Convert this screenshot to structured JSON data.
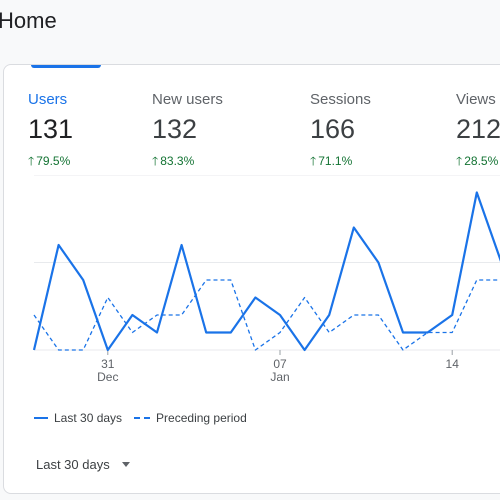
{
  "page": {
    "title": "Home"
  },
  "metrics": [
    {
      "label": "Users",
      "value": "131",
      "change": "79.5%",
      "active": true
    },
    {
      "label": "New users",
      "value": "132",
      "change": "83.3%",
      "active": false
    },
    {
      "label": "Sessions",
      "value": "166",
      "change": "71.1%",
      "active": false
    },
    {
      "label": "Views",
      "value": "212",
      "change": "28.5%",
      "active": false
    }
  ],
  "colors": {
    "accent": "#1a73e8",
    "positive": "#137333"
  },
  "chart_data": {
    "type": "line",
    "x_ticks": [
      {
        "day": "31",
        "month": "Dec"
      },
      {
        "day": "07",
        "month": "Jan"
      },
      {
        "day": "14",
        "month": ""
      }
    ],
    "series": [
      {
        "name": "Last 30 days",
        "style": "solid",
        "values": [
          0,
          6,
          4,
          0,
          2,
          1,
          6,
          1,
          1,
          3,
          2,
          0,
          2,
          7,
          5,
          1,
          1,
          2,
          9,
          5
        ]
      },
      {
        "name": "Preceding period",
        "style": "dashed",
        "values": [
          2,
          0,
          0,
          3,
          1,
          2,
          2,
          4,
          4,
          0,
          1,
          3,
          1,
          2,
          2,
          0,
          1,
          1,
          4,
          4
        ]
      }
    ],
    "ylim": [
      0,
      10
    ],
    "grid": true,
    "legend_position": "bottom-left"
  },
  "legend": {
    "current": "Last 30 days",
    "previous": "Preceding period"
  },
  "date_range": {
    "selected": "Last 30 days"
  }
}
